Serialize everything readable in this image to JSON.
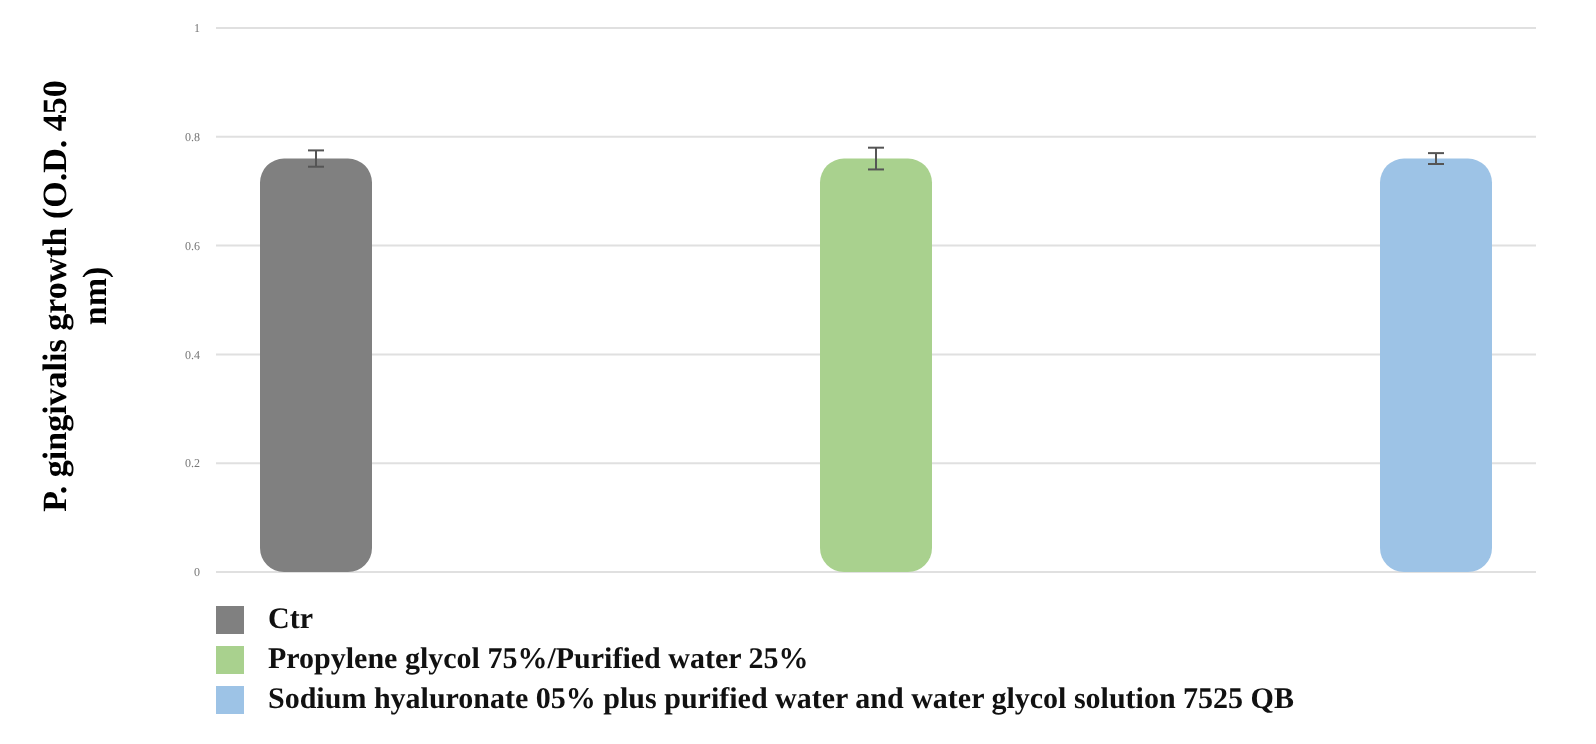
{
  "chart_data": {
    "type": "bar",
    "ylabel": "P. gingivalis growth (O.D. 450 nm)",
    "categories": [
      null
    ],
    "series": [
      {
        "name": "Ctr",
        "color": "#808080",
        "values": [
          0.76
        ],
        "errors": [
          0.015
        ]
      },
      {
        "name": "Propylene glycol 75%/Purified water 25%",
        "color": "#a9d18e",
        "values": [
          0.76
        ],
        "errors": [
          0.02
        ]
      },
      {
        "name": "Sodium hyaluronate 05% plus purified water and water glycol solution 7525 QB",
        "color": "#9dc3e6",
        "values": [
          0.76
        ],
        "errors": [
          0.01
        ]
      }
    ],
    "ylim": [
      0,
      1
    ],
    "yticks": [
      0,
      0.2,
      0.4,
      0.6,
      0.8,
      1
    ],
    "grid": "y",
    "legend": "bottom left"
  }
}
